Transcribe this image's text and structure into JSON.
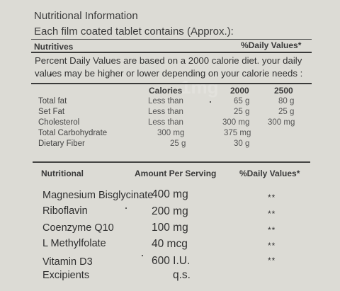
{
  "header": {
    "title": "Nutritional Information",
    "subtitle": "Each film coated tablet contains (Approx.):"
  },
  "label_top": {
    "nutritives": "Nutritives",
    "daily_values": "%Daily Values*"
  },
  "note": {
    "line1": "Percent Daily Values are based on a 2000 calorie diet. your daily",
    "line2": "values may be higher or lower depending on your calorie needs :"
  },
  "calorie_table": {
    "columns": [
      "Calories",
      "2000",
      "2500"
    ],
    "rows": [
      {
        "name": "Total fat",
        "limit": "Less than",
        "c2000": "65 g",
        "c2500": "80 g"
      },
      {
        "name": "Set Fat",
        "limit": "Less than",
        "c2000": "25 g",
        "c2500": "25 g"
      },
      {
        "name": "Cholesterol",
        "limit": "Less than",
        "c2000": "300 mg",
        "c2500": "300 mg"
      },
      {
        "name": "Total Carbohydrate",
        "limit": "300 mg",
        "c2000": "375 mg",
        "c2500": ""
      },
      {
        "name": "Dietary Fiber",
        "limit": "25 g",
        "c2000": "30 g",
        "c2500": ""
      }
    ]
  },
  "nutrition_table": {
    "headers": {
      "nutritional": "Nutritional",
      "amount": "Amount Per Serving",
      "daily_values": "%Daily Values*"
    },
    "items": [
      {
        "name": "Magnesium Bisglycinate",
        "amount": "400 mg",
        "dv": "**"
      },
      {
        "name": "Riboflavin",
        "amount": "200 mg",
        "dv": "**"
      },
      {
        "name": "Coenzyme Q10",
        "amount": "100 mg",
        "dv": "**"
      },
      {
        "name": "L Methylfolate",
        "amount": "40 mcg",
        "dv": "**"
      },
      {
        "name": "Vitamin D3",
        "amount": "600 I.U.",
        "dv": "**"
      },
      {
        "name": "Excipients",
        "amount": "q.s.",
        "dv": ""
      }
    ]
  },
  "watermark": "1mg"
}
